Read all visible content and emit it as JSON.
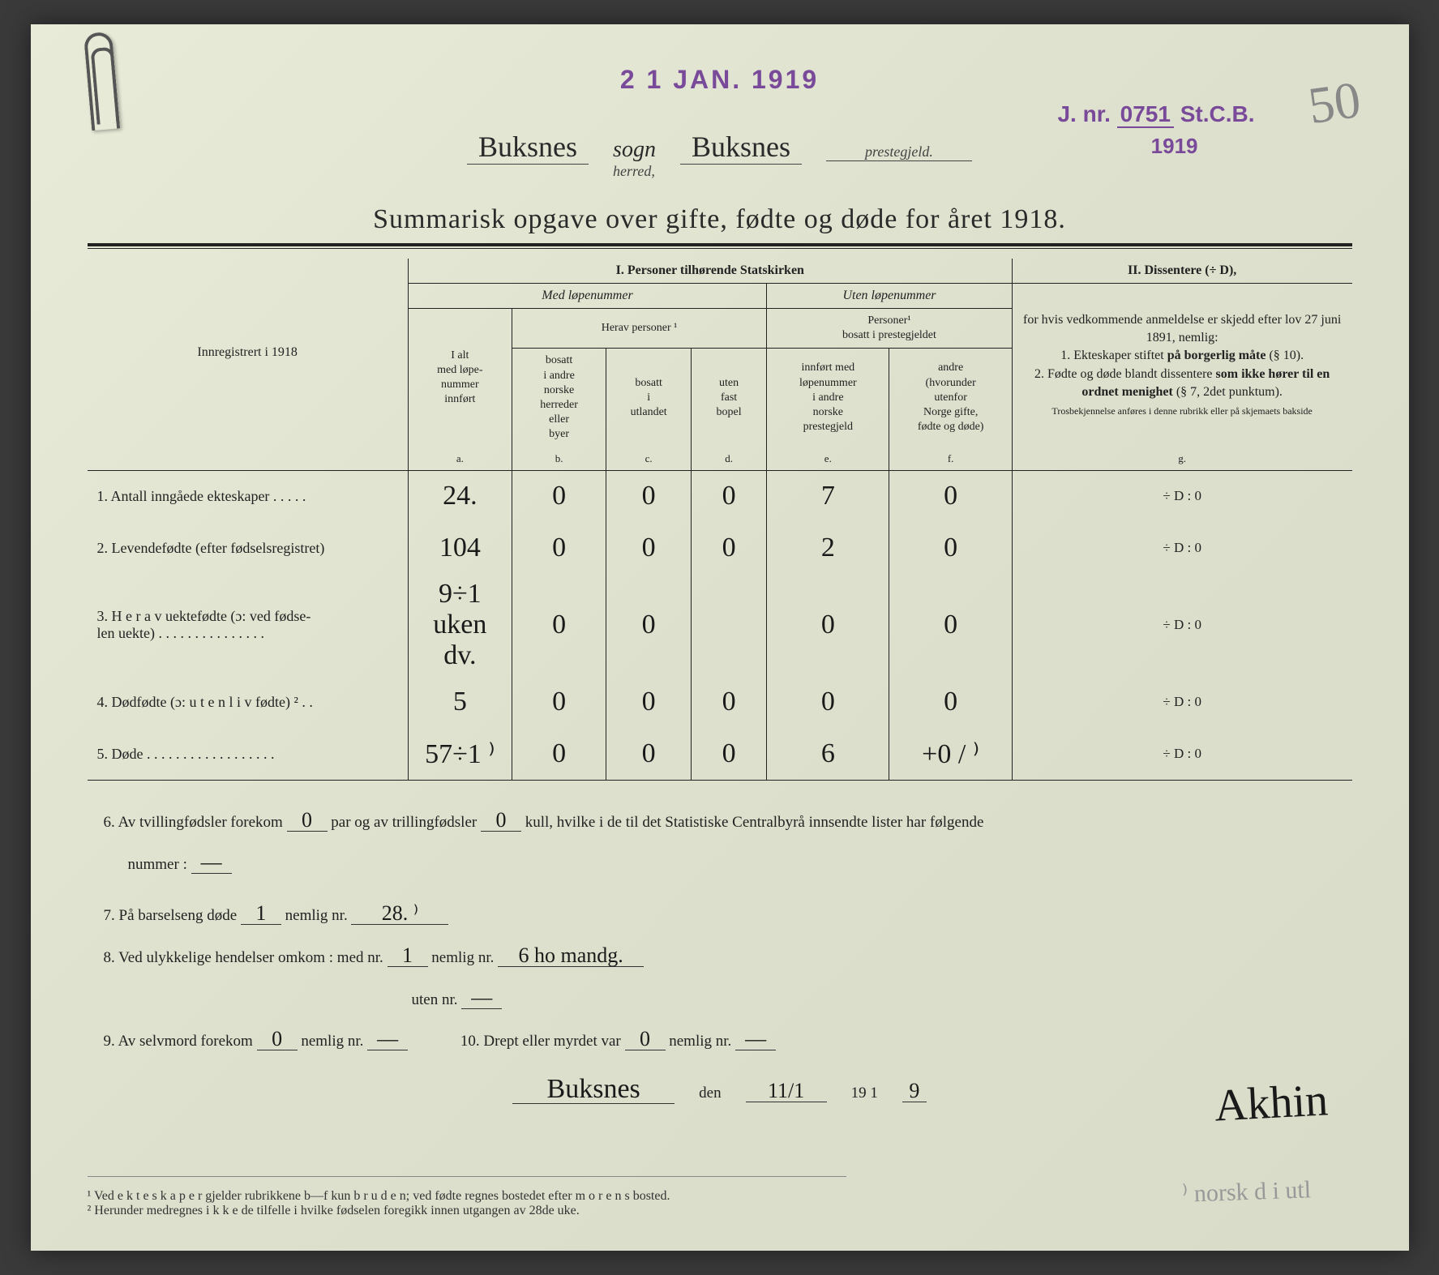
{
  "stamps": {
    "date": "2 1 JAN. 1919",
    "jnr_prefix": "J. nr.",
    "jnr_num": "0751",
    "jnr_suffix": "St.C.B.",
    "year": "1919"
  },
  "page_number": "50",
  "header": {
    "sogn_value": "Buksnes",
    "sogn_label": "sogn",
    "herred_label": "herred,",
    "herred_value": "Buksnes",
    "prestegjeld_label": "prestegjeld."
  },
  "title": "Summarisk opgave over gifte, fødte og døde for året 1918.",
  "table": {
    "col0_header": "Innregistrert i 1918",
    "section1": "I.  Personer tilhørende Statskirken",
    "med_lopenummer": "Med løpenummer",
    "uten_lopenummer": "Uten løpenummer",
    "herav_personer": "Herav personer ¹",
    "personer_bosatt": "Personer¹\nbosatt i prestegjeldet",
    "section2": "II.  Dissentere (÷ D),",
    "col_a": "I alt\nmed løpe-\nnummer\ninnført",
    "col_b": "bosatt\ni andre\nnorske\nherreder\neller\nbyer",
    "col_c": "bosatt\ni\nutlandet",
    "col_d": "uten\nfast\nbopel",
    "col_e": "innført med\nløpenummer\ni andre\nnorske\nprestegjeld",
    "col_f": "andre\n(hvorunder\nutenfor\nNorge gifte,\nfødte og døde)",
    "diss_body": "for hvis vedkommende anmeldelse er skjedd efter lov 27 juni 1891, nemlig:\n1. Ekteskaper stiftet på borgerlig måte (§ 10).\n2. Fødte og døde blandt dissentere som ikke hører til en ordnet menighet (§ 7, 2det punktum).\nTrosbekjennelse anføres i denne rubrikk eller på skjemaets bakside",
    "letters": [
      "a.",
      "b.",
      "c.",
      "d.",
      "e.",
      "f.",
      "g."
    ],
    "rows": [
      {
        "num": "1.",
        "label": "Antall inngåede ekteskaper . . . . .",
        "a": "24.",
        "b": "0",
        "c": "0",
        "d": "0",
        "e": "7",
        "f": "0",
        "g": "÷ D :   0"
      },
      {
        "num": "2.",
        "label": "Levendefødte (efter fødselsregistret)",
        "a": "104",
        "b": "0",
        "c": "0",
        "d": "0",
        "e": "2",
        "f": "0",
        "g": "÷ D :   0"
      },
      {
        "num": "3.",
        "label": "H e r a v uektefødte (ɔ: ved fødse-\nlen uekte) . . . . . . . . . . . . . . .",
        "a": "9÷1 uken dv.",
        "b": "0",
        "c": "0",
        "d": "",
        "e": "0",
        "f": "0",
        "g": "÷ D :   0"
      },
      {
        "num": "4.",
        "label": "Dødfødte (ɔ: u t e n  l i v fødte) ² . .",
        "a": "5",
        "b": "0",
        "c": "0",
        "d": "0",
        "e": "0",
        "f": "0",
        "g": "÷ D :   0"
      },
      {
        "num": "5.",
        "label": "Døde . . . . . . . . . . . . . . . . . .",
        "a": "57÷1 ⁾",
        "b": "0",
        "c": "0",
        "d": "0",
        "e": "6",
        "f": "+0 / ⁾",
        "g": "÷ D :   0"
      }
    ]
  },
  "below": {
    "q6_pre": "6.  Av tvillingfødsler forekom",
    "q6_v1": "0",
    "q6_mid": "par og av trillingfødsler",
    "q6_v2": "0",
    "q6_post": "kull, hvilke i de til det Statistiske Centralbyrå innsendte lister har følgende",
    "q6_line2": "nummer :",
    "q6_numval": "—",
    "q7_pre": "7.  På barselseng døde",
    "q7_v1": "1",
    "q7_mid": "nemlig nr.",
    "q7_v2": "28.  ⁾",
    "q8_pre": "8.  Ved ulykkelige hendelser omkom :  med nr.",
    "q8_v1": "1",
    "q8_mid": "nemlig nr.",
    "q8_v2": "6 ho mandg.",
    "q8_line2": "uten nr.",
    "q8_v3": "—",
    "q9_pre": "9.  Av selvmord forekom",
    "q9_v1": "0",
    "q9_mid": "nemlig nr.",
    "q9_v2": "—",
    "q10_pre": "10.  Drept eller myrdet var",
    "q10_v1": "0",
    "q10_mid": "nemlig nr.",
    "q10_v2": "—",
    "sig_place": "Buksnes",
    "sig_den": "den",
    "sig_date": "11/1",
    "sig_year_pre": "19 1",
    "sig_year": "9",
    "signature": "Akhin"
  },
  "footnotes": {
    "f1": "¹   Ved e k t e s k a p e r gjelder rubrikkene b—f kun b r u d e n; ved fødte regnes bostedet efter m o r e n s bosted.",
    "f2": "²   Herunder medregnes i k k e de tilfelle i hvilke fødselen foregikk innen utgangen av 28de uke."
  },
  "pencil_note": "⁾ norsk d i utl"
}
